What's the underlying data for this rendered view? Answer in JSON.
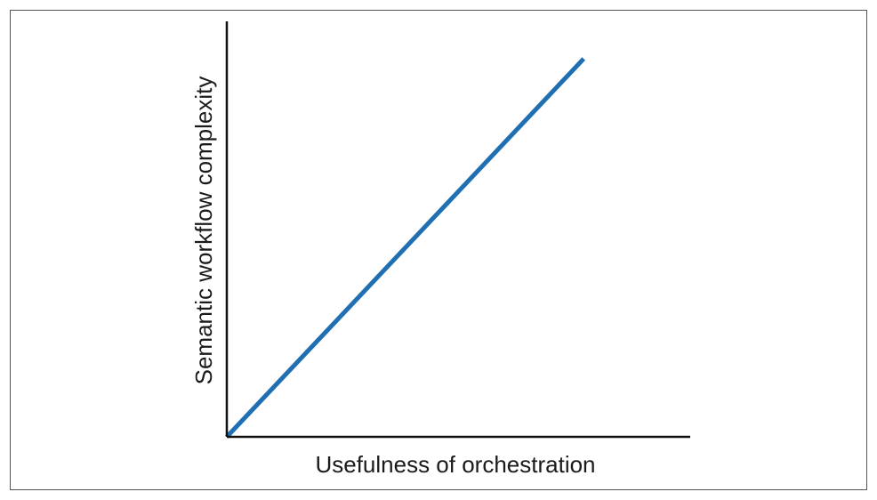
{
  "chart_data": {
    "type": "line",
    "title": "",
    "xlabel": "Usefulness of orchestration",
    "ylabel": "Semantic workflow complexity",
    "xlim": [
      0,
      1
    ],
    "ylim": [
      0,
      1
    ],
    "grid": false,
    "ticks": false,
    "series": [
      {
        "color": "#1f6fb2",
        "x": [
          0,
          0.77
        ],
        "y": [
          0,
          0.91
        ]
      }
    ]
  },
  "colors": {
    "frame": "#555555",
    "axis": "#111111",
    "line": "#1f6fb2"
  }
}
